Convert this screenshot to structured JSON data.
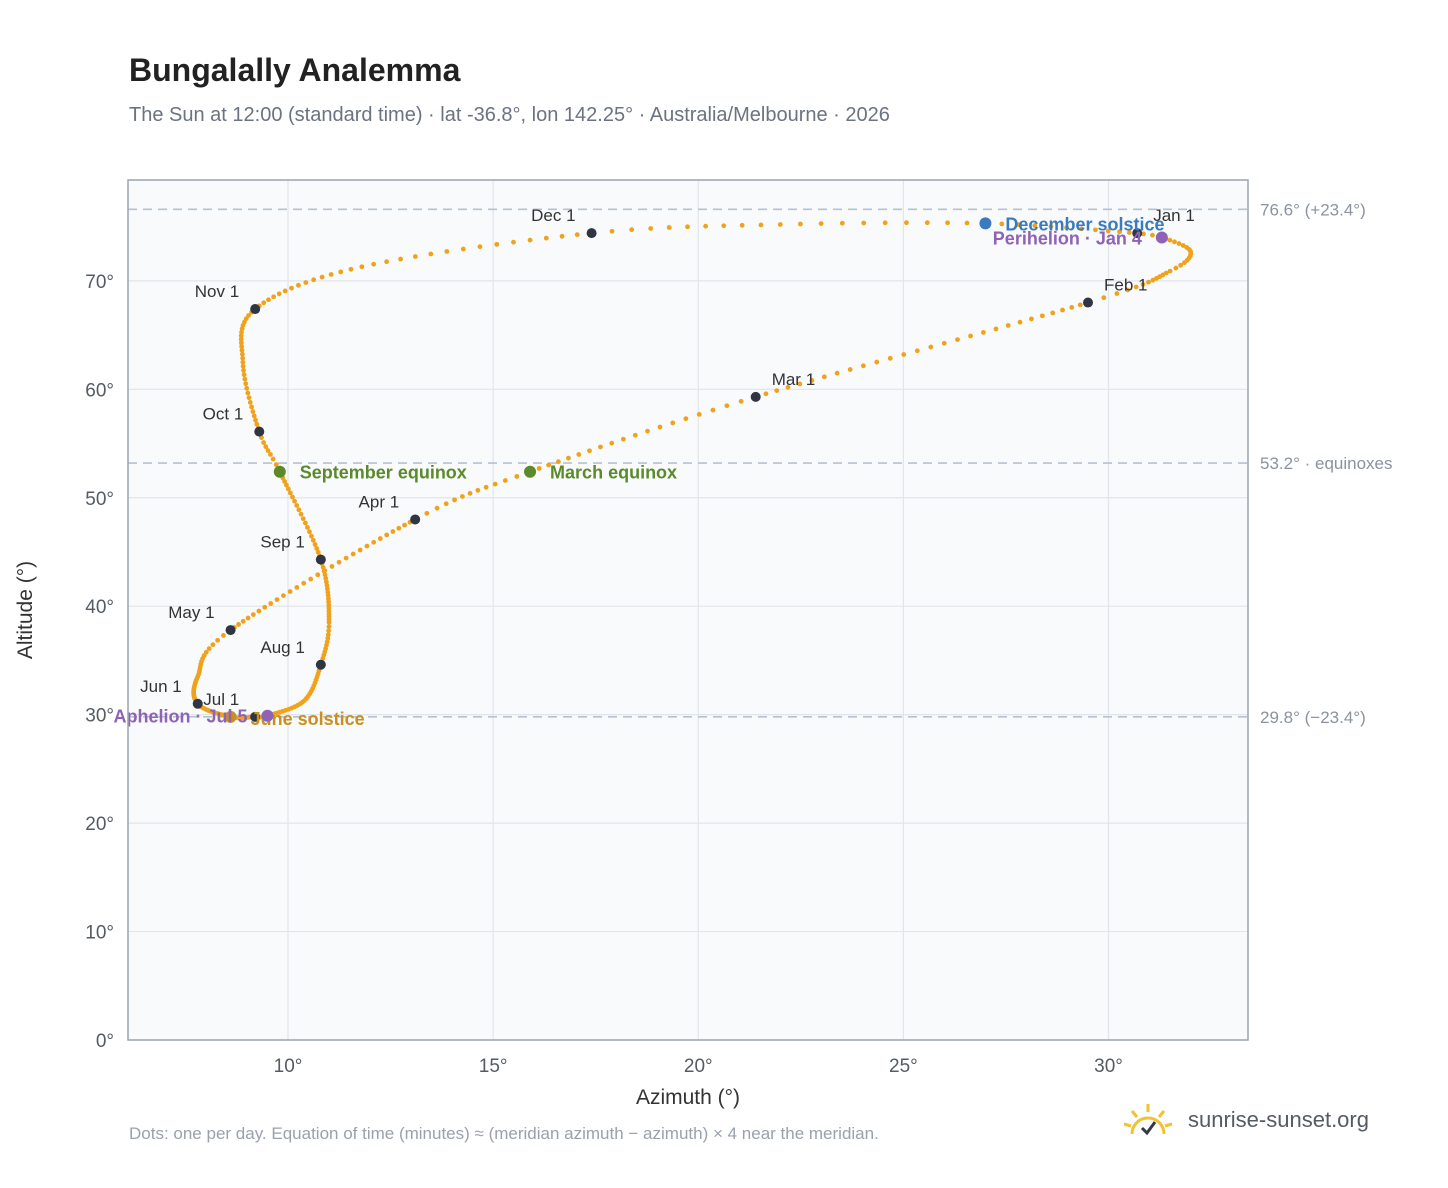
{
  "header": {
    "title": "Bungalally Analemma",
    "subtitle": "The Sun at 12:00 (standard time) · lat -36.8°, lon 142.25° · Australia/Melbourne · 2026"
  },
  "footer": {
    "note": "Dots: one per day. Equation of time (minutes) ≈ (meridian azimuth − azimuth) × 4 near the meridian.",
    "brand": "sunrise-sunset.org",
    "logo_icon": "sun-logo-icon"
  },
  "colors": {
    "trail": "#f0a21c",
    "month_marker": "#2f3542",
    "equinox": "#5a8a2a",
    "december_solstice": "#3a7abf",
    "june_solstice": "#c9901e",
    "apsis": "#8e62b4",
    "plot_bg": "#f8fafc",
    "grid": "#e1e6ec",
    "ref_line": "#b7c2d0"
  },
  "chart_data": {
    "type": "scatter",
    "title": "Bungalally Analemma",
    "xlabel": "Azimuth (°)",
    "ylabel": "Altitude (°)",
    "xlim": [
      6.1,
      33.4
    ],
    "ylim": [
      0,
      79.3
    ],
    "xticks": [
      {
        "v": 10,
        "label": "10°"
      },
      {
        "v": 15,
        "label": "15°"
      },
      {
        "v": 20,
        "label": "20°"
      },
      {
        "v": 25,
        "label": "25°"
      },
      {
        "v": 30,
        "label": "30°"
      }
    ],
    "yticks": [
      {
        "v": 0,
        "label": "0°"
      },
      {
        "v": 10,
        "label": "10°"
      },
      {
        "v": 20,
        "label": "20°"
      },
      {
        "v": 30,
        "label": "30°"
      },
      {
        "v": 40,
        "label": "40°"
      },
      {
        "v": 50,
        "label": "50°"
      },
      {
        "v": 60,
        "label": "60°"
      },
      {
        "v": 70,
        "label": "70°"
      }
    ],
    "grid": true,
    "reference_lines": [
      {
        "altitude": 76.6,
        "label": "76.6° (+23.4°)"
      },
      {
        "altitude": 53.2,
        "label": "53.2° · equinoxes"
      },
      {
        "altitude": 29.8,
        "label": "29.8° (−23.4°)"
      }
    ],
    "path_anchors": [
      {
        "day": 1,
        "az": 30.7,
        "alt": 74.4
      },
      {
        "day": 4,
        "az": 31.3,
        "alt": 74.0
      },
      {
        "day": 12,
        "az": 32.0,
        "alt": 72.7
      },
      {
        "day": 20,
        "az": 31.5,
        "alt": 70.9
      },
      {
        "day": 32,
        "az": 29.5,
        "alt": 68.0
      },
      {
        "day": 60,
        "az": 21.4,
        "alt": 59.3
      },
      {
        "day": 79,
        "az": 15.9,
        "alt": 52.4
      },
      {
        "day": 91,
        "az": 13.1,
        "alt": 48.0
      },
      {
        "day": 121,
        "az": 8.6,
        "alt": 37.8
      },
      {
        "day": 135,
        "az": 7.8,
        "alt": 33.5
      },
      {
        "day": 152,
        "az": 7.8,
        "alt": 31.0
      },
      {
        "day": 172,
        "az": 8.6,
        "alt": 29.8
      },
      {
        "day": 182,
        "az": 9.2,
        "alt": 29.8
      },
      {
        "day": 186,
        "az": 9.5,
        "alt": 29.9
      },
      {
        "day": 200,
        "az": 10.4,
        "alt": 31.3
      },
      {
        "day": 213,
        "az": 10.8,
        "alt": 34.6
      },
      {
        "day": 225,
        "az": 11.0,
        "alt": 38.5
      },
      {
        "day": 244,
        "az": 10.8,
        "alt": 44.3
      },
      {
        "day": 266,
        "az": 9.8,
        "alt": 52.4
      },
      {
        "day": 274,
        "az": 9.3,
        "alt": 56.1
      },
      {
        "day": 290,
        "az": 8.9,
        "alt": 62.5
      },
      {
        "day": 305,
        "az": 9.2,
        "alt": 67.4
      },
      {
        "day": 320,
        "az": 11.8,
        "alt": 71.3
      },
      {
        "day": 335,
        "az": 17.4,
        "alt": 74.4
      },
      {
        "day": 345,
        "az": 22.0,
        "alt": 75.2
      },
      {
        "day": 355,
        "az": 27.0,
        "alt": 75.3
      },
      {
        "day": 366,
        "az": 30.7,
        "alt": 74.4
      }
    ],
    "month_markers": [
      {
        "label": "Jan 1",
        "az": 30.7,
        "alt": 74.4
      },
      {
        "label": "Feb 1",
        "az": 29.5,
        "alt": 68.0
      },
      {
        "label": "Mar 1",
        "az": 21.4,
        "alt": 59.3
      },
      {
        "label": "Apr 1",
        "az": 13.1,
        "alt": 48.0
      },
      {
        "label": "May 1",
        "az": 8.6,
        "alt": 37.8
      },
      {
        "label": "Jun 1",
        "az": 7.8,
        "alt": 31.0
      },
      {
        "label": "Jul 1",
        "az": 9.2,
        "alt": 29.8
      },
      {
        "label": "Aug 1",
        "az": 10.8,
        "alt": 34.6
      },
      {
        "label": "Sep 1",
        "az": 10.8,
        "alt": 44.3
      },
      {
        "label": "Oct 1",
        "az": 9.3,
        "alt": 56.1
      },
      {
        "label": "Nov 1",
        "az": 9.2,
        "alt": 67.4
      },
      {
        "label": "Dec 1",
        "az": 17.4,
        "alt": 74.4
      }
    ],
    "events": [
      {
        "label": "March equinox",
        "az": 15.9,
        "alt": 52.4,
        "kind": "equinox"
      },
      {
        "label": "September equinox",
        "az": 9.8,
        "alt": 52.4,
        "kind": "equinox"
      },
      {
        "label": "December solstice",
        "az": 27.0,
        "alt": 75.3,
        "kind": "december_solstice"
      },
      {
        "label": "June solstice",
        "az": 8.6,
        "alt": 29.8,
        "kind": "june_solstice"
      },
      {
        "label": "Perihelion · Jan 4",
        "az": 31.3,
        "alt": 74.0,
        "kind": "apsis"
      },
      {
        "label": "Aphelion · Jul 5",
        "az": 9.5,
        "alt": 29.9,
        "kind": "apsis"
      }
    ]
  }
}
